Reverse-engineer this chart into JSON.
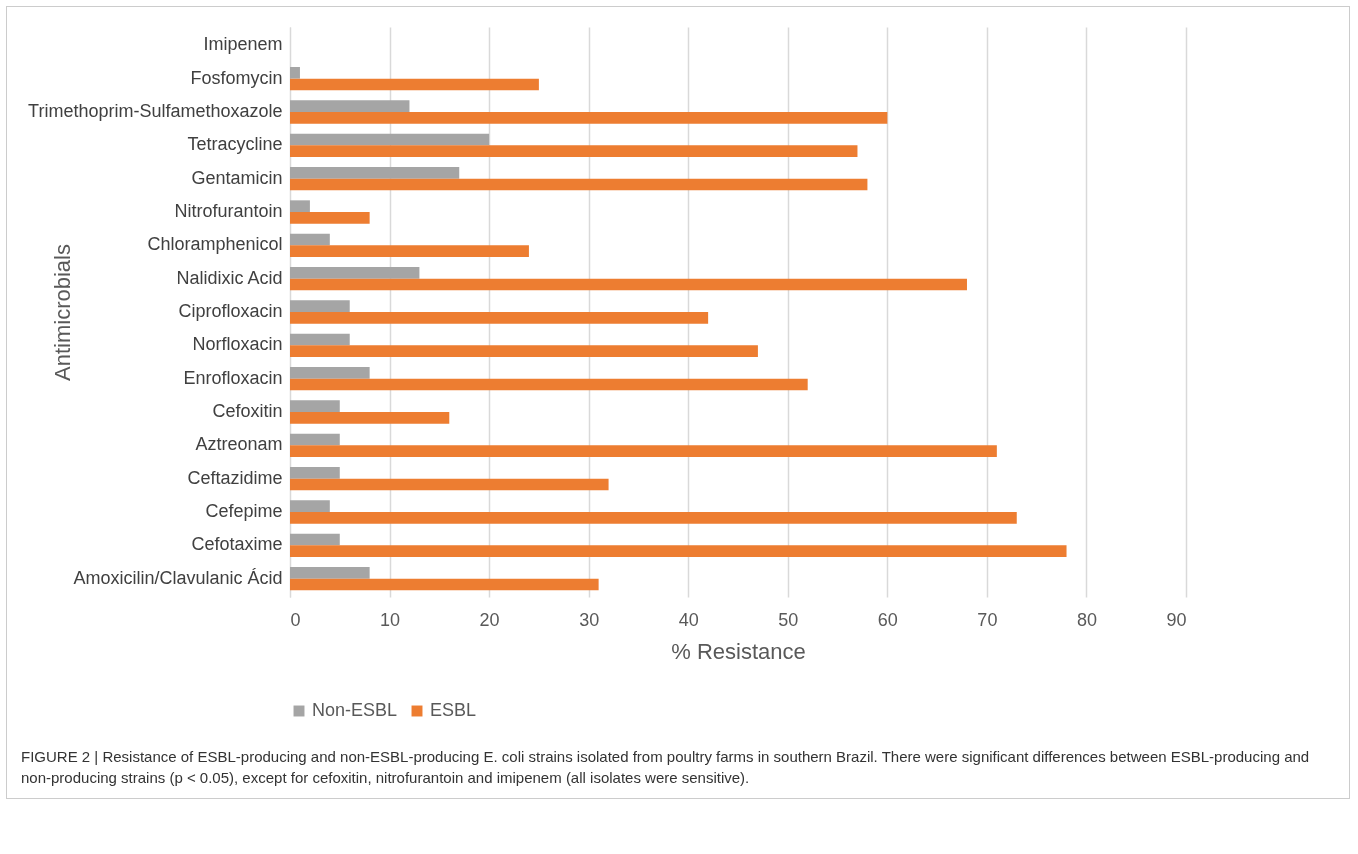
{
  "chart_data": {
    "type": "bar",
    "orientation": "horizontal",
    "xlabel": "% Resistance",
    "ylabel": "Antimicrobials",
    "categories": [
      "Imipenem",
      "Fosfomycin",
      "Trimethoprim-Sulfamethoxazole",
      "Tetracycline",
      "Gentamicin",
      "Nitrofurantoin",
      "Chloramphenicol",
      "Nalidixic Acid",
      "Ciprofloxacin",
      "Norfloxacin",
      "Enrofloxacin",
      "Cefoxitin",
      "Aztreonam",
      "Ceftazidime",
      "Cefepime",
      "Cefotaxime",
      "Amoxicilin/Clavulanic Ácid"
    ],
    "series": [
      {
        "name": "Non-ESBL",
        "color": "#a5a5a5",
        "values": [
          0,
          1,
          12,
          20,
          17,
          2,
          4,
          13,
          6,
          6,
          8,
          5,
          5,
          5,
          4,
          5,
          8
        ]
      },
      {
        "name": "ESBL",
        "color": "#ed7d31",
        "values": [
          0,
          25,
          60,
          57,
          58,
          8,
          24,
          68,
          42,
          47,
          52,
          16,
          71,
          32,
          73,
          78,
          31
        ]
      }
    ],
    "xlim": [
      0,
      90
    ],
    "xticks": [
      0,
      10,
      20,
      30,
      40,
      50,
      60,
      70,
      80,
      90
    ],
    "grid": "x",
    "legend": "bottom",
    "annotations": [
      "FIGURE 2 | Resistance of ESBL-producing and non-ESBL-producing E. coli strains isolated from poultry farms in southern Brazil. There were significant differences between ESBL-producing and non-producing strains (p < 0.05), except for cefoxitin, nitrofurantoin and imipenem (all isolates were sensitive)."
    ]
  }
}
